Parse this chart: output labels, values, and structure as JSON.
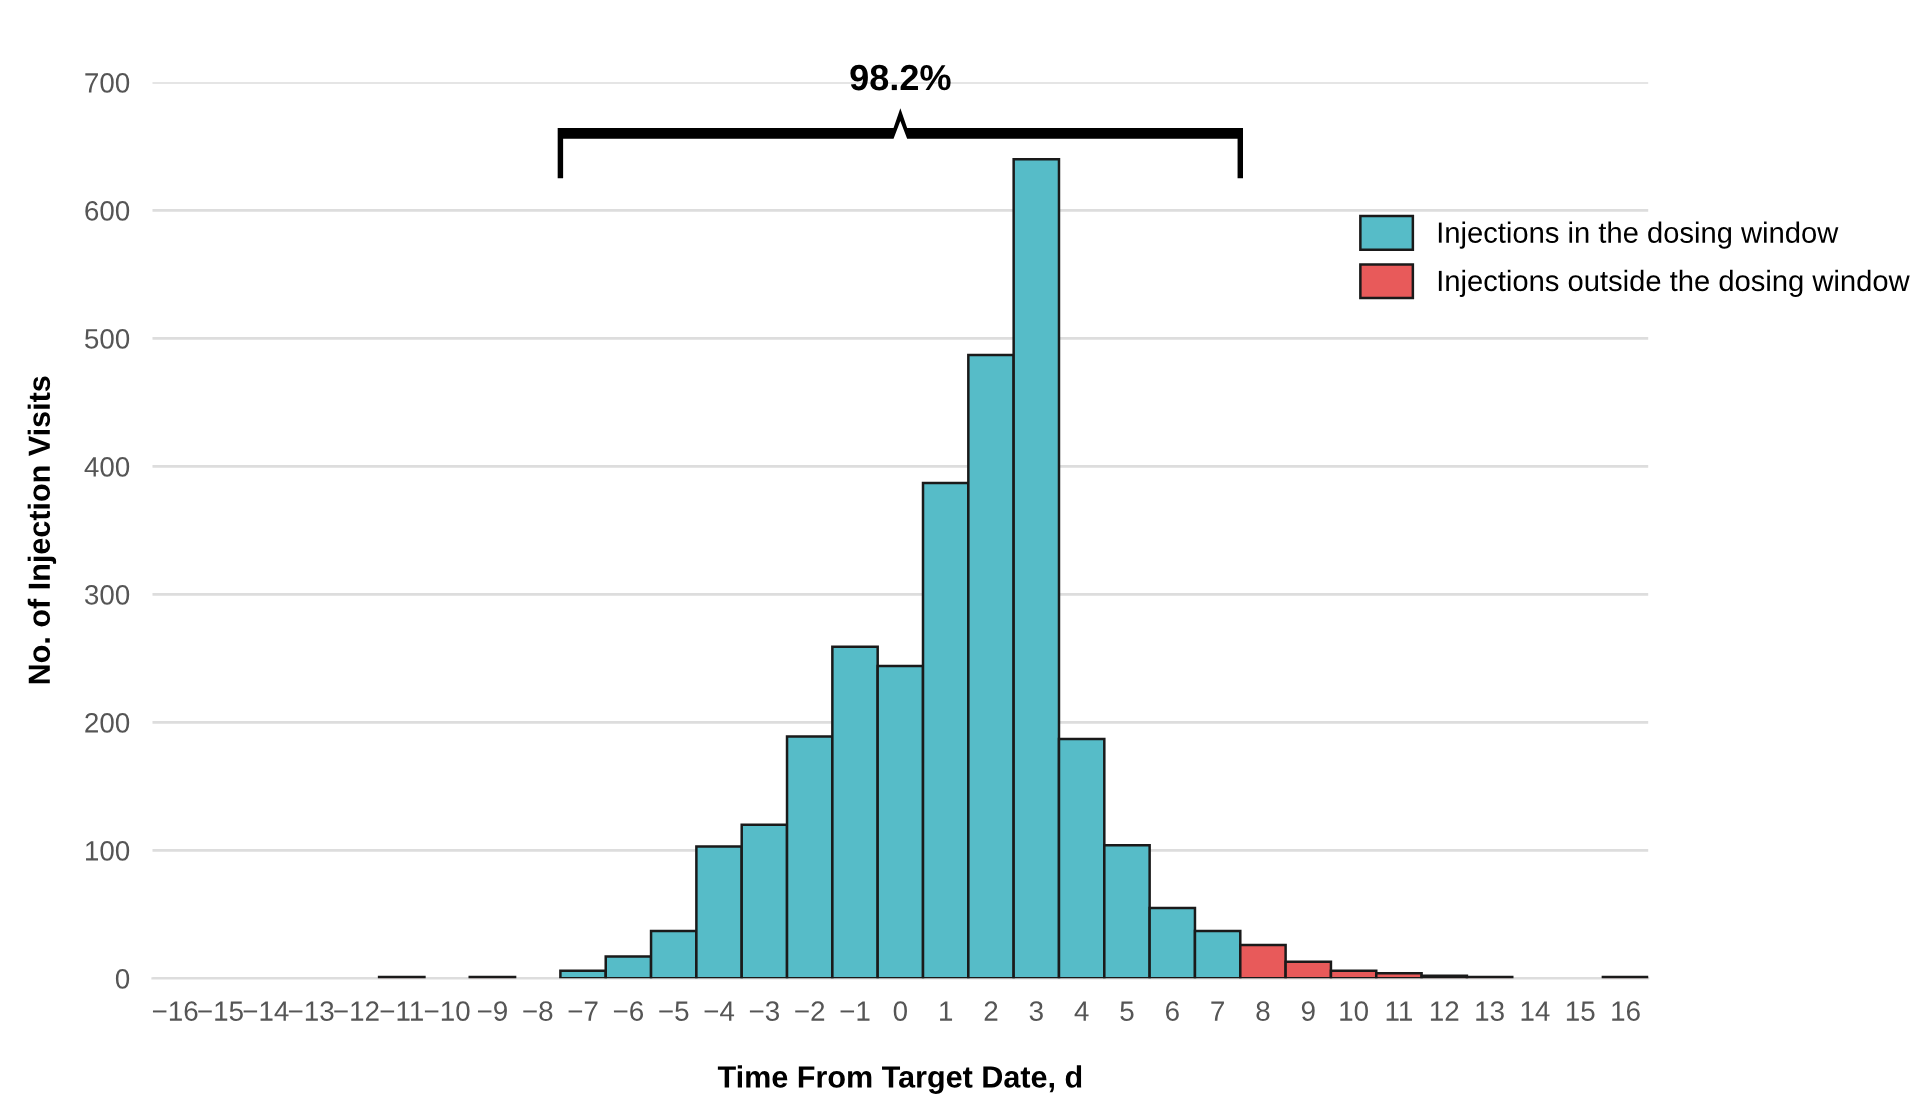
{
  "chart_data": {
    "type": "histogram",
    "xlabel": "Time From Target Date, d",
    "ylabel": "No. of Injection Visits",
    "bins": [
      -16.5,
      -15.5,
      -14.5,
      -13.5,
      -12.5,
      -11.5,
      -10.5,
      -9.5,
      -8.5,
      -7.5,
      -6.5,
      -5.5,
      -4.5,
      -3.5,
      -2.5,
      -1.5,
      -0.5,
      0.5,
      1.5,
      2.5,
      3.5,
      4.5,
      5.5,
      6.5,
      7.5,
      8.5,
      9.5,
      10.5,
      11.5,
      12.5,
      13.5,
      14.5,
      15.5,
      16.5
    ],
    "series": [
      {
        "name": "Injections in the dosing window",
        "color": "#56bcc8",
        "values": [
          null,
          null,
          null,
          null,
          null,
          null,
          null,
          null,
          null,
          6,
          17,
          37,
          103,
          120,
          189,
          259,
          244,
          387,
          487,
          640,
          187,
          104,
          55,
          37,
          null,
          null,
          null,
          null,
          null,
          null,
          null,
          null,
          null
        ]
      },
      {
        "name": "Injections outside the dosing window",
        "color": "#e85a5a",
        "values": [
          null,
          null,
          null,
          null,
          null,
          1,
          null,
          1,
          null,
          null,
          null,
          null,
          null,
          null,
          null,
          null,
          null,
          null,
          null,
          null,
          null,
          null,
          null,
          null,
          26,
          13,
          6,
          4,
          2,
          1,
          null,
          null,
          1
        ]
      }
    ],
    "xlim": [
      -16.5,
      16.5
    ],
    "xticks": [
      {
        "value": -16,
        "label": "−16"
      },
      {
        "value": -15,
        "label": "−15"
      },
      {
        "value": -14,
        "label": "−14"
      },
      {
        "value": -13,
        "label": "−13"
      },
      {
        "value": -12,
        "label": "−12"
      },
      {
        "value": -11,
        "label": "−11"
      },
      {
        "value": -10,
        "label": "−10"
      },
      {
        "value": -9,
        "label": "−9"
      },
      {
        "value": -8,
        "label": "−8"
      },
      {
        "value": -7,
        "label": "−7"
      },
      {
        "value": -6,
        "label": "−6"
      },
      {
        "value": -5,
        "label": "−5"
      },
      {
        "value": -4,
        "label": "−4"
      },
      {
        "value": -3,
        "label": "−3"
      },
      {
        "value": -2,
        "label": "−2"
      },
      {
        "value": -1,
        "label": "−1"
      },
      0,
      1,
      2,
      3,
      4,
      5,
      6,
      7,
      8,
      9,
      10,
      11,
      12,
      13,
      14,
      15,
      16
    ],
    "ylim": [
      0,
      700
    ],
    "yticks": [
      0,
      100,
      200,
      300,
      400,
      500,
      600,
      700
    ],
    "grid": "y",
    "legend": "right",
    "annotations": [
      "98.2%"
    ]
  }
}
